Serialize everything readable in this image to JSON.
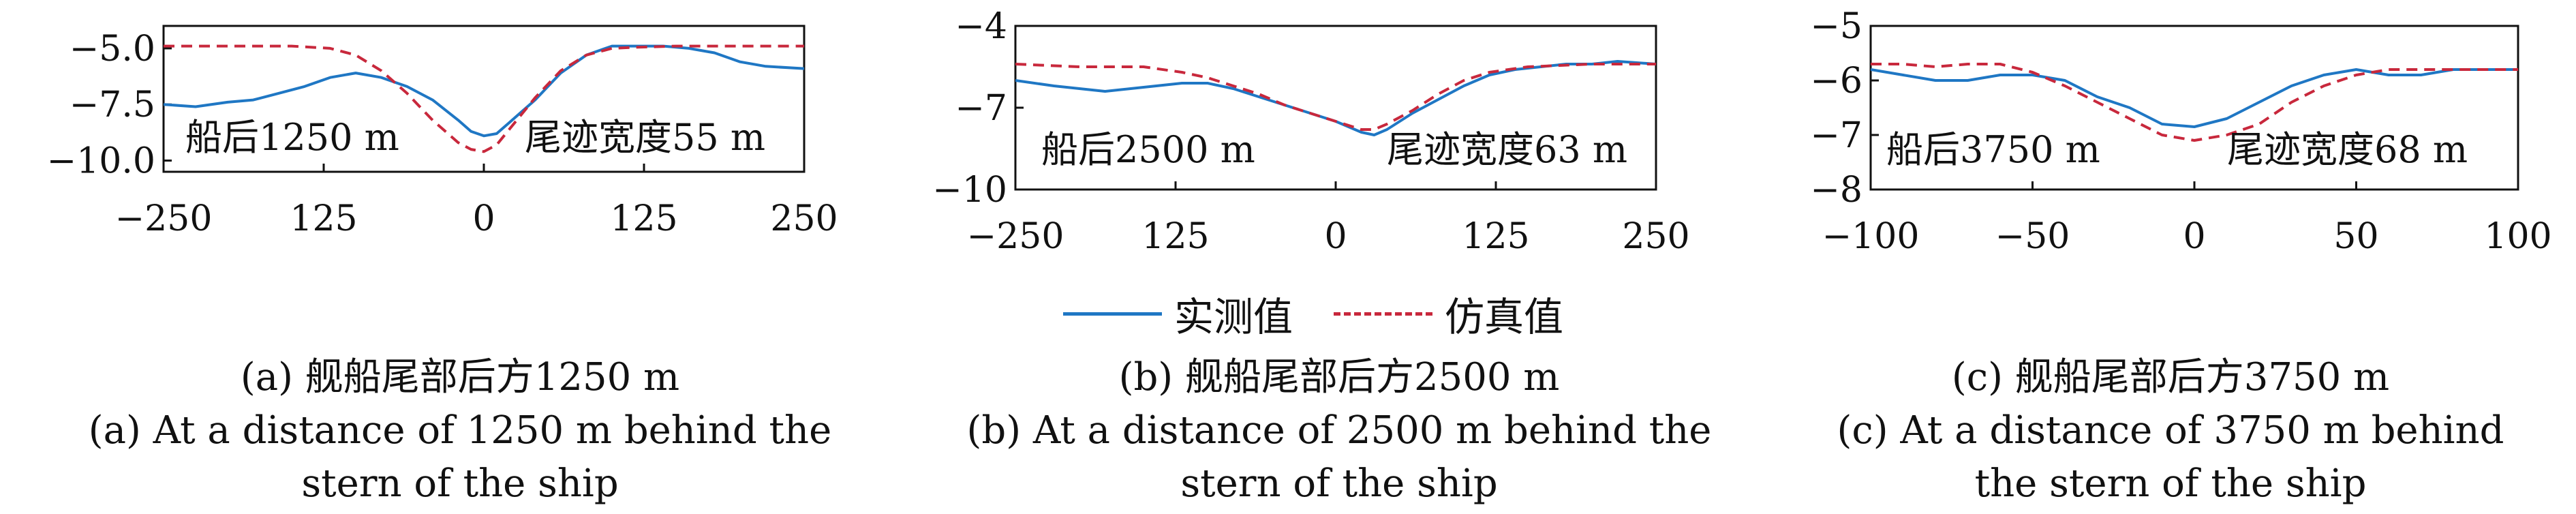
{
  "legend": {
    "measured_label": "实测值",
    "simulated_label": "仿真值",
    "measured_color": "#1f77c4",
    "simulated_color": "#c8283c"
  },
  "captions": [
    {
      "cn": "(a) 舰船尾部后方1250 m",
      "en1": "(a) At a distance of 1250 m behind the",
      "en2": "stern of the ship"
    },
    {
      "cn": "(b) 舰船尾部后方2500 m",
      "en1": "(b) At a distance of 2500 m behind the",
      "en2": "stern of the ship"
    },
    {
      "cn": "(c) 舰船尾部后方3750 m",
      "en1": "(c) At a distance of 3750 m behind",
      "en2": "the stern of the ship"
    }
  ],
  "chart_data": [
    {
      "type": "line",
      "annotations": [
        "船后1250 m",
        "尾迹宽度55 m"
      ],
      "xlim": [
        -250,
        250
      ],
      "ylim": [
        -10.5,
        -4.0
      ],
      "xticks": [
        -250,
        125,
        0,
        125,
        250
      ],
      "xtick_labels": [
        "−250",
        "125",
        "0",
        "125",
        "250"
      ],
      "yticks": [
        -5.0,
        -7.5,
        -10.0
      ],
      "ytick_labels": [
        "−5.0",
        "−7.5",
        "−10.0"
      ],
      "series": [
        {
          "name": "实测值",
          "style": "solid",
          "x": [
            -250,
            -225,
            -200,
            -180,
            -160,
            -140,
            -120,
            -100,
            -80,
            -60,
            -40,
            -20,
            -10,
            0,
            10,
            20,
            40,
            60,
            80,
            100,
            120,
            140,
            160,
            180,
            200,
            220,
            250
          ],
          "y": [
            -7.5,
            -7.6,
            -7.4,
            -7.3,
            -7.0,
            -6.7,
            -6.3,
            -6.1,
            -6.3,
            -6.7,
            -7.3,
            -8.2,
            -8.7,
            -8.9,
            -8.8,
            -8.3,
            -7.3,
            -6.1,
            -5.3,
            -4.9,
            -4.9,
            -4.9,
            -5.0,
            -5.2,
            -5.6,
            -5.8,
            -5.9
          ]
        },
        {
          "name": "仿真值",
          "style": "dashed",
          "x": [
            -250,
            -200,
            -150,
            -120,
            -100,
            -80,
            -60,
            -40,
            -20,
            -10,
            0,
            10,
            20,
            40,
            60,
            80,
            100,
            120,
            150,
            200,
            250
          ],
          "y": [
            -4.9,
            -4.9,
            -4.9,
            -5.0,
            -5.3,
            -6.0,
            -7.0,
            -8.2,
            -9.2,
            -9.5,
            -9.6,
            -9.3,
            -8.6,
            -7.2,
            -6.0,
            -5.3,
            -5.0,
            -4.95,
            -4.9,
            -4.9,
            -4.9
          ]
        }
      ]
    },
    {
      "type": "line",
      "annotations": [
        "船后2500 m",
        "尾迹宽度63 m"
      ],
      "xlim": [
        -250,
        250
      ],
      "ylim": [
        -10,
        -4
      ],
      "xticks": [
        -250,
        125,
        0,
        125,
        250
      ],
      "xtick_labels": [
        "−250",
        "125",
        "0",
        "125",
        "250"
      ],
      "yticks": [
        -4,
        -7,
        -10
      ],
      "ytick_labels": [
        "−4",
        "−7",
        "−10"
      ],
      "series": [
        {
          "name": "实测值",
          "style": "solid",
          "x": [
            -250,
            -220,
            -200,
            -180,
            -160,
            -140,
            -120,
            -100,
            -80,
            -60,
            -40,
            -20,
            0,
            20,
            30,
            40,
            60,
            80,
            100,
            120,
            140,
            160,
            180,
            200,
            220,
            250
          ],
          "y": [
            -6.0,
            -6.2,
            -6.3,
            -6.4,
            -6.3,
            -6.2,
            -6.1,
            -6.1,
            -6.3,
            -6.6,
            -6.9,
            -7.2,
            -7.5,
            -7.9,
            -8.0,
            -7.8,
            -7.2,
            -6.7,
            -6.2,
            -5.8,
            -5.6,
            -5.5,
            -5.4,
            -5.4,
            -5.3,
            -5.4
          ]
        },
        {
          "name": "仿真值",
          "style": "dashed",
          "x": [
            -250,
            -200,
            -150,
            -120,
            -100,
            -80,
            -60,
            -40,
            -20,
            0,
            20,
            30,
            40,
            60,
            80,
            100,
            120,
            150,
            200,
            250
          ],
          "y": [
            -5.4,
            -5.5,
            -5.5,
            -5.7,
            -5.9,
            -6.2,
            -6.5,
            -6.9,
            -7.2,
            -7.5,
            -7.8,
            -7.8,
            -7.6,
            -7.1,
            -6.5,
            -6.0,
            -5.7,
            -5.5,
            -5.4,
            -5.4
          ]
        }
      ]
    },
    {
      "type": "line",
      "annotations": [
        "船后3750 m",
        "尾迹宽度68 m"
      ],
      "xlim": [
        -100,
        100
      ],
      "ylim": [
        -8,
        -5
      ],
      "xticks": [
        -100,
        -50,
        0,
        50,
        100
      ],
      "xtick_labels": [
        "−100",
        "−50",
        "0",
        "50",
        "100"
      ],
      "yticks": [
        -5,
        -6,
        -7,
        -8
      ],
      "ytick_labels": [
        "−5",
        "−6",
        "−7",
        "−8"
      ],
      "series": [
        {
          "name": "实测值",
          "style": "solid",
          "x": [
            -100,
            -90,
            -80,
            -70,
            -60,
            -50,
            -40,
            -30,
            -20,
            -10,
            0,
            10,
            20,
            30,
            40,
            50,
            60,
            70,
            80,
            90,
            100
          ],
          "y": [
            -5.8,
            -5.9,
            -6.0,
            -6.0,
            -5.9,
            -5.9,
            -6.0,
            -6.3,
            -6.5,
            -6.8,
            -6.85,
            -6.7,
            -6.4,
            -6.1,
            -5.9,
            -5.8,
            -5.9,
            -5.9,
            -5.8,
            -5.8,
            -5.8
          ]
        },
        {
          "name": "仿真值",
          "style": "dashed",
          "x": [
            -100,
            -90,
            -80,
            -70,
            -60,
            -50,
            -40,
            -30,
            -20,
            -10,
            0,
            10,
            20,
            30,
            40,
            50,
            60,
            70,
            80,
            90,
            100
          ],
          "y": [
            -5.7,
            -5.7,
            -5.75,
            -5.7,
            -5.7,
            -5.85,
            -6.1,
            -6.4,
            -6.7,
            -7.0,
            -7.1,
            -7.0,
            -6.8,
            -6.4,
            -6.1,
            -5.9,
            -5.8,
            -5.8,
            -5.8,
            -5.8,
            -5.8
          ]
        }
      ]
    }
  ]
}
